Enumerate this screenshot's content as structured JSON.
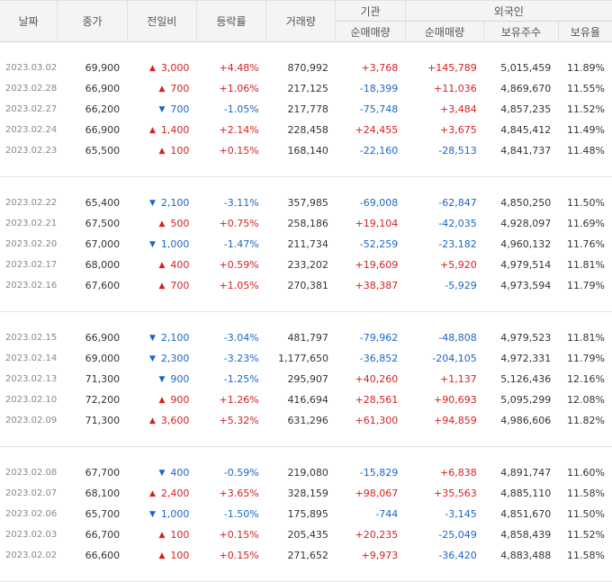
{
  "headers": {
    "date": "날짜",
    "close": "종가",
    "diff": "전일비",
    "rate": "등락률",
    "volume": "거래량",
    "institution": "기관",
    "foreign": "외국인",
    "inst_net": "순매매량",
    "foreign_net": "순매매량",
    "foreign_hold": "보유주수",
    "foreign_ratio": "보유율"
  },
  "icons": {
    "up": "▲",
    "down": "▼"
  },
  "colors": {
    "up": "#d61f1f",
    "down": "#1a66c6"
  },
  "groups": [
    [
      {
        "date": "2023.03.02",
        "close": "69,900",
        "dir": "up",
        "diff": "3,000",
        "rate": "+4.48%",
        "volume": "870,992",
        "inst": "+3,768",
        "foreign": "+145,789",
        "hold": "5,015,459",
        "ratio": "11.89%"
      },
      {
        "date": "2023.02.28",
        "close": "66,900",
        "dir": "up",
        "diff": "700",
        "rate": "+1.06%",
        "volume": "217,125",
        "inst": "-18,399",
        "foreign": "+11,036",
        "hold": "4,869,670",
        "ratio": "11.55%"
      },
      {
        "date": "2023.02.27",
        "close": "66,200",
        "dir": "down",
        "diff": "700",
        "rate": "-1.05%",
        "volume": "217,778",
        "inst": "-75,748",
        "foreign": "+3,484",
        "hold": "4,857,235",
        "ratio": "11.52%"
      },
      {
        "date": "2023.02.24",
        "close": "66,900",
        "dir": "up",
        "diff": "1,400",
        "rate": "+2.14%",
        "volume": "228,458",
        "inst": "+24,455",
        "foreign": "+3,675",
        "hold": "4,845,412",
        "ratio": "11.49%"
      },
      {
        "date": "2023.02.23",
        "close": "65,500",
        "dir": "up",
        "diff": "100",
        "rate": "+0.15%",
        "volume": "168,140",
        "inst": "-22,160",
        "foreign": "-28,513",
        "hold": "4,841,737",
        "ratio": "11.48%"
      }
    ],
    [
      {
        "date": "2023.02.22",
        "close": "65,400",
        "dir": "down",
        "diff": "2,100",
        "rate": "-3.11%",
        "volume": "357,985",
        "inst": "-69,008",
        "foreign": "-62,847",
        "hold": "4,850,250",
        "ratio": "11.50%"
      },
      {
        "date": "2023.02.21",
        "close": "67,500",
        "dir": "up",
        "diff": "500",
        "rate": "+0.75%",
        "volume": "258,186",
        "inst": "+19,104",
        "foreign": "-42,035",
        "hold": "4,928,097",
        "ratio": "11.69%"
      },
      {
        "date": "2023.02.20",
        "close": "67,000",
        "dir": "down",
        "diff": "1,000",
        "rate": "-1.47%",
        "volume": "211,734",
        "inst": "-52,259",
        "foreign": "-23,182",
        "hold": "4,960,132",
        "ratio": "11.76%"
      },
      {
        "date": "2023.02.17",
        "close": "68,000",
        "dir": "up",
        "diff": "400",
        "rate": "+0.59%",
        "volume": "233,202",
        "inst": "+19,609",
        "foreign": "+5,920",
        "hold": "4,979,514",
        "ratio": "11.81%"
      },
      {
        "date": "2023.02.16",
        "close": "67,600",
        "dir": "up",
        "diff": "700",
        "rate": "+1.05%",
        "volume": "270,381",
        "inst": "+38,387",
        "foreign": "-5,929",
        "hold": "4,973,594",
        "ratio": "11.79%"
      }
    ],
    [
      {
        "date": "2023.02.15",
        "close": "66,900",
        "dir": "down",
        "diff": "2,100",
        "rate": "-3.04%",
        "volume": "481,797",
        "inst": "-79,962",
        "foreign": "-48,808",
        "hold": "4,979,523",
        "ratio": "11.81%"
      },
      {
        "date": "2023.02.14",
        "close": "69,000",
        "dir": "down",
        "diff": "2,300",
        "rate": "-3.23%",
        "volume": "1,177,650",
        "inst": "-36,852",
        "foreign": "-204,105",
        "hold": "4,972,331",
        "ratio": "11.79%"
      },
      {
        "date": "2023.02.13",
        "close": "71,300",
        "dir": "down",
        "diff": "900",
        "rate": "-1.25%",
        "volume": "295,907",
        "inst": "+40,260",
        "foreign": "+1,137",
        "hold": "5,126,436",
        "ratio": "12.16%"
      },
      {
        "date": "2023.02.10",
        "close": "72,200",
        "dir": "up",
        "diff": "900",
        "rate": "+1.26%",
        "volume": "416,694",
        "inst": "+28,561",
        "foreign": "+90,693",
        "hold": "5,095,299",
        "ratio": "12.08%"
      },
      {
        "date": "2023.02.09",
        "close": "71,300",
        "dir": "up",
        "diff": "3,600",
        "rate": "+5.32%",
        "volume": "631,296",
        "inst": "+61,300",
        "foreign": "+94,859",
        "hold": "4,986,606",
        "ratio": "11.82%"
      }
    ],
    [
      {
        "date": "2023.02.08",
        "close": "67,700",
        "dir": "down",
        "diff": "400",
        "rate": "-0.59%",
        "volume": "219,080",
        "inst": "-15,829",
        "foreign": "+6,838",
        "hold": "4,891,747",
        "ratio": "11.60%"
      },
      {
        "date": "2023.02.07",
        "close": "68,100",
        "dir": "up",
        "diff": "2,400",
        "rate": "+3.65%",
        "volume": "328,159",
        "inst": "+98,067",
        "foreign": "+35,563",
        "hold": "4,885,110",
        "ratio": "11.58%"
      },
      {
        "date": "2023.02.06",
        "close": "65,700",
        "dir": "down",
        "diff": "1,000",
        "rate": "-1.50%",
        "volume": "175,895",
        "inst": "-744",
        "foreign": "-3,145",
        "hold": "4,851,670",
        "ratio": "11.50%"
      },
      {
        "date": "2023.02.03",
        "close": "66,700",
        "dir": "up",
        "diff": "100",
        "rate": "+0.15%",
        "volume": "205,435",
        "inst": "+20,235",
        "foreign": "-25,049",
        "hold": "4,858,439",
        "ratio": "11.52%"
      },
      {
        "date": "2023.02.02",
        "close": "66,600",
        "dir": "up",
        "diff": "100",
        "rate": "+0.15%",
        "volume": "271,652",
        "inst": "+9,973",
        "foreign": "-36,420",
        "hold": "4,883,488",
        "ratio": "11.58%"
      }
    ]
  ]
}
